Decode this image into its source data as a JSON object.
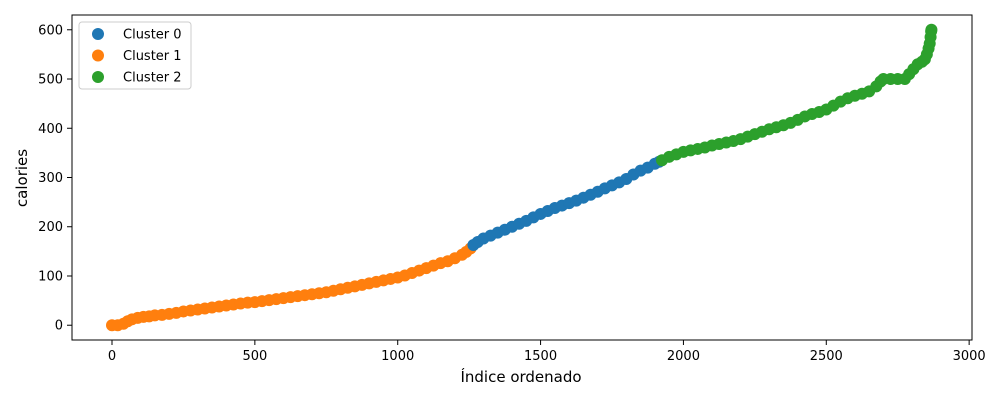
{
  "chart_data": {
    "type": "scatter",
    "title": "",
    "xlabel": "Índice ordenado",
    "ylabel": "calories",
    "xlim": [
      -140,
      3010
    ],
    "ylim": [
      -30,
      630
    ],
    "x_ticks": [
      0,
      500,
      1000,
      1500,
      2000,
      2500,
      3000
    ],
    "y_ticks": [
      0,
      100,
      200,
      300,
      400,
      500,
      600
    ],
    "grid": false,
    "legend_position": "top-left",
    "series": [
      {
        "name": "Cluster 1",
        "color": "#ff7f0e",
        "points": [
          [
            0,
            0
          ],
          [
            20,
            0
          ],
          [
            40,
            3
          ],
          [
            55,
            8
          ],
          [
            70,
            12
          ],
          [
            90,
            15
          ],
          [
            110,
            17
          ],
          [
            130,
            18
          ],
          [
            150,
            20
          ],
          [
            175,
            21
          ],
          [
            200,
            23
          ],
          [
            225,
            25
          ],
          [
            250,
            28
          ],
          [
            275,
            30
          ],
          [
            300,
            32
          ],
          [
            325,
            34
          ],
          [
            350,
            36
          ],
          [
            375,
            38
          ],
          [
            400,
            40
          ],
          [
            425,
            42
          ],
          [
            450,
            44
          ],
          [
            475,
            46
          ],
          [
            500,
            47
          ],
          [
            525,
            49
          ],
          [
            550,
            51
          ],
          [
            575,
            53
          ],
          [
            600,
            55
          ],
          [
            625,
            57
          ],
          [
            650,
            59
          ],
          [
            675,
            61
          ],
          [
            700,
            63
          ],
          [
            725,
            65
          ],
          [
            750,
            67
          ],
          [
            775,
            70
          ],
          [
            800,
            73
          ],
          [
            825,
            76
          ],
          [
            850,
            79
          ],
          [
            875,
            82
          ],
          [
            900,
            85
          ],
          [
            925,
            88
          ],
          [
            950,
            91
          ],
          [
            975,
            94
          ],
          [
            1000,
            97
          ],
          [
            1025,
            101
          ],
          [
            1050,
            106
          ],
          [
            1075,
            111
          ],
          [
            1100,
            116
          ],
          [
            1125,
            121
          ],
          [
            1150,
            126
          ],
          [
            1175,
            130
          ],
          [
            1200,
            136
          ],
          [
            1225,
            143
          ],
          [
            1240,
            149
          ],
          [
            1255,
            156
          ]
        ]
      },
      {
        "name": "Cluster 0",
        "color": "#1f77b4",
        "points": [
          [
            1265,
            163
          ],
          [
            1280,
            169
          ],
          [
            1300,
            176
          ],
          [
            1325,
            182
          ],
          [
            1350,
            188
          ],
          [
            1375,
            194
          ],
          [
            1400,
            200
          ],
          [
            1425,
            206
          ],
          [
            1450,
            212
          ],
          [
            1475,
            219
          ],
          [
            1500,
            226
          ],
          [
            1525,
            232
          ],
          [
            1550,
            238
          ],
          [
            1575,
            243
          ],
          [
            1600,
            248
          ],
          [
            1625,
            253
          ],
          [
            1650,
            259
          ],
          [
            1675,
            265
          ],
          [
            1700,
            271
          ],
          [
            1725,
            278
          ],
          [
            1750,
            284
          ],
          [
            1775,
            290
          ],
          [
            1800,
            297
          ],
          [
            1825,
            306
          ],
          [
            1850,
            314
          ],
          [
            1875,
            320
          ],
          [
            1900,
            328
          ],
          [
            1915,
            332
          ]
        ]
      },
      {
        "name": "Cluster 2",
        "color": "#2ca02c",
        "points": [
          [
            1925,
            335
          ],
          [
            1950,
            342
          ],
          [
            1975,
            347
          ],
          [
            2000,
            352
          ],
          [
            2025,
            355
          ],
          [
            2050,
            358
          ],
          [
            2075,
            361
          ],
          [
            2100,
            365
          ],
          [
            2125,
            368
          ],
          [
            2150,
            371
          ],
          [
            2175,
            374
          ],
          [
            2200,
            378
          ],
          [
            2225,
            383
          ],
          [
            2250,
            388
          ],
          [
            2275,
            393
          ],
          [
            2300,
            398
          ],
          [
            2325,
            402
          ],
          [
            2350,
            406
          ],
          [
            2375,
            411
          ],
          [
            2400,
            417
          ],
          [
            2425,
            424
          ],
          [
            2450,
            429
          ],
          [
            2475,
            433
          ],
          [
            2500,
            438
          ],
          [
            2525,
            446
          ],
          [
            2550,
            454
          ],
          [
            2575,
            461
          ],
          [
            2600,
            466
          ],
          [
            2625,
            470
          ],
          [
            2650,
            475
          ],
          [
            2675,
            485
          ],
          [
            2690,
            495
          ],
          [
            2700,
            500
          ],
          [
            2725,
            500
          ],
          [
            2750,
            500
          ],
          [
            2775,
            500
          ],
          [
            2790,
            510
          ],
          [
            2805,
            520
          ],
          [
            2820,
            530
          ],
          [
            2835,
            535
          ],
          [
            2845,
            540
          ],
          [
            2852,
            550
          ],
          [
            2858,
            562
          ],
          [
            2862,
            572
          ],
          [
            2865,
            585
          ],
          [
            2867,
            597
          ],
          [
            2868,
            600
          ]
        ]
      }
    ],
    "legend": [
      {
        "name": "Cluster 0",
        "color": "#1f77b4"
      },
      {
        "name": "Cluster 1",
        "color": "#ff7f0e"
      },
      {
        "name": "Cluster 2",
        "color": "#2ca02c"
      }
    ]
  }
}
